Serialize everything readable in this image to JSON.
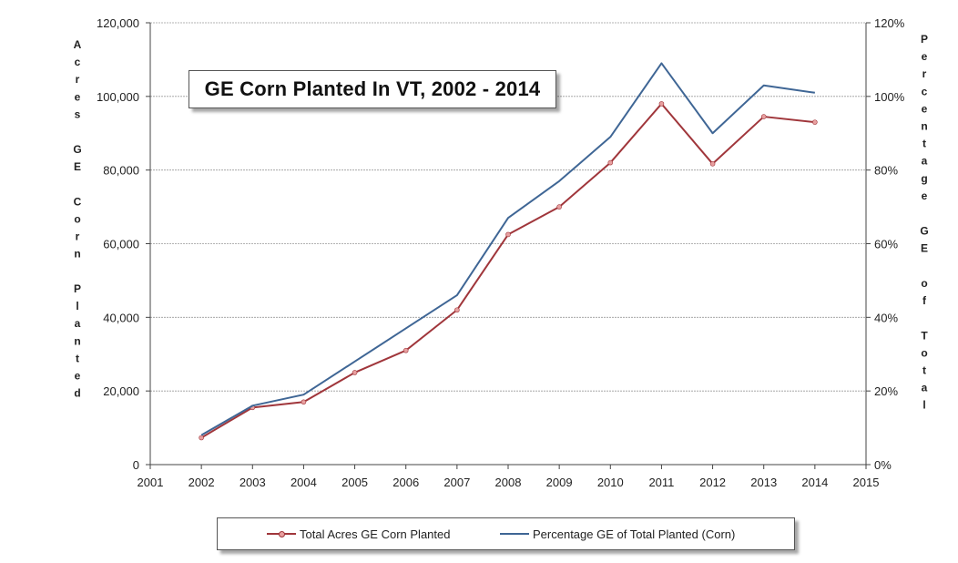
{
  "chart_data": {
    "type": "line",
    "title": "GE Corn Planted In VT, 2002 - 2014",
    "x_ticks": [
      "2001",
      "2002",
      "2003",
      "2004",
      "2005",
      "2006",
      "2007",
      "2008",
      "2009",
      "2010",
      "2011",
      "2012",
      "2013",
      "2014",
      "2015"
    ],
    "xlim": [
      2001,
      2015
    ],
    "x": [
      2002,
      2003,
      2004,
      2005,
      2006,
      2007,
      2008,
      2009,
      2010,
      2011,
      2012,
      2013,
      2014
    ],
    "ylim_left": [
      0,
      120000
    ],
    "ylim_right": [
      0,
      120
    ],
    "y_ticks_left": [
      "0",
      "20,000",
      "40,000",
      "60,000",
      "80,000",
      "100,000",
      "120,000"
    ],
    "y_ticks_right": [
      "0%",
      "20%",
      "40%",
      "60%",
      "80%",
      "100%",
      "120%"
    ],
    "ylabel_left": "Acres GE Corn Planted",
    "ylabel_right": "Percentage GE of Total",
    "series": [
      {
        "name": "Total Acres GE Corn Planted",
        "axis": "left",
        "color": "#a0363b",
        "marker_color": "#e8a0a0",
        "values": [
          7300,
          15500,
          17000,
          25000,
          31000,
          42000,
          62500,
          70000,
          82000,
          98000,
          81700,
          94500,
          93000
        ]
      },
      {
        "name": "Percentage GE of Total Planted (Corn)",
        "axis": "right",
        "color": "#3f6695",
        "values": [
          8,
          16,
          19,
          28,
          37,
          46,
          67,
          77,
          89,
          109,
          90,
          103,
          101
        ]
      }
    ],
    "grid": true,
    "legend_position": "bottom"
  }
}
